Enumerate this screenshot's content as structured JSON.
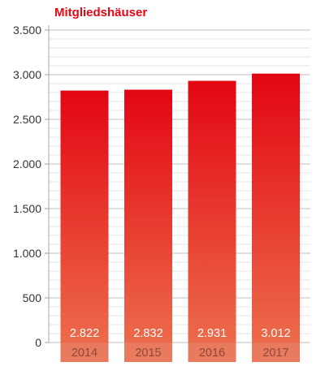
{
  "chart_data": {
    "type": "bar",
    "title": "Mitgliedshäuser",
    "xlabel": "",
    "ylabel": "",
    "categories": [
      "2014",
      "2015",
      "2016",
      "2017"
    ],
    "values": [
      2822,
      2832,
      2931,
      3012
    ],
    "value_labels": [
      "2.822",
      "2.832",
      "2.931",
      "3.012"
    ],
    "ylim": [
      0,
      3500
    ],
    "y_ticks": [
      0,
      500,
      1000,
      1500,
      2000,
      2500,
      3000,
      3500
    ],
    "y_tick_labels": [
      "0",
      "500",
      "1.000",
      "1.500",
      "2.000",
      "2.500",
      "3.000",
      "3.500"
    ],
    "grid": true,
    "legend": "none",
    "colors": {
      "title": "#e30613",
      "bar_top": "#e30613",
      "bar_bottom": "#ec6a4a",
      "category_band": "#ea7a5e",
      "category_text": "#8a4a3a",
      "value_text": "#ffffff",
      "grid_major": "#bfbfbf",
      "grid_minor": "#e6e6e6",
      "axis": "#a6a6a6"
    }
  }
}
